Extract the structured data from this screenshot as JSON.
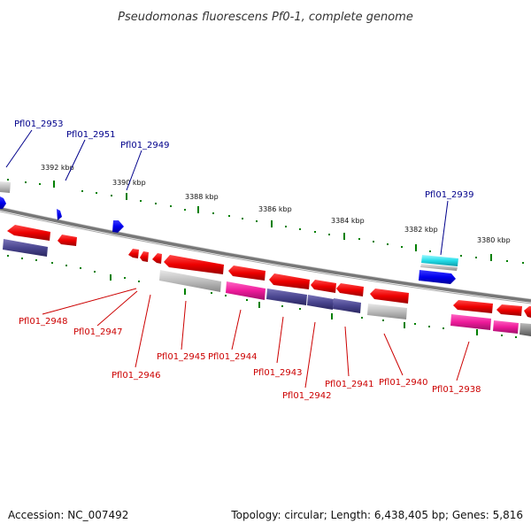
{
  "title": "Pseudomonas fluorescens Pf0-1, complete genome",
  "footer": {
    "accession": "Accession: NC_007492",
    "summary": "Topology: circular; Length: 6,438,405 bp; Genes: 5,816"
  },
  "colors": {
    "forward_label": "#00008b",
    "reverse_label": "#cc0000",
    "tick": "#008000",
    "backbone": "#888888"
  },
  "ticks": [
    "3392 kbp",
    "3390 kbp",
    "3388 kbp",
    "3386 kbp",
    "3384 kbp",
    "3382 kbp",
    "3380 kbp"
  ],
  "forward_genes": [
    "Pfl01_2953",
    "Pfl01_2951",
    "Pfl01_2949",
    "Pfl01_2939"
  ],
  "reverse_genes": [
    "Pfl01_2948",
    "Pfl01_2947",
    "Pfl01_2946",
    "Pfl01_2945",
    "Pfl01_2944",
    "Pfl01_2943",
    "Pfl01_2942",
    "Pfl01_2941",
    "Pfl01_2940",
    "Pfl01_2938"
  ]
}
